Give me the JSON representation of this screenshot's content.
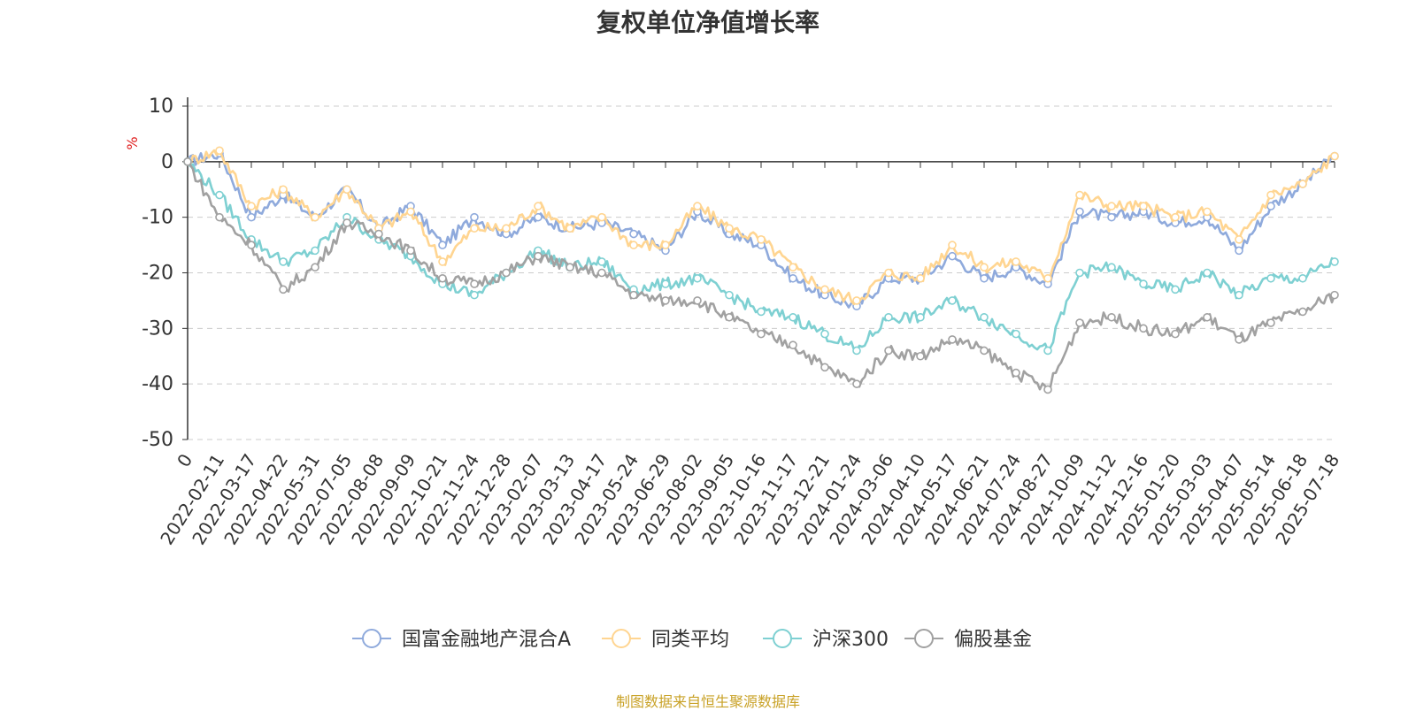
{
  "chart_data": {
    "type": "line",
    "title": "复权单位净值增长率",
    "ylabel": "%",
    "ylim": [
      -50,
      10
    ],
    "yticks": [
      10,
      0,
      -10,
      -20,
      -30,
      -40,
      -50
    ],
    "first_x_label": "0",
    "x_tick_labels": [
      "2022-02-11",
      "2022-03-17",
      "2022-04-22",
      "2022-05-31",
      "2022-07-05",
      "2022-08-08",
      "2022-09-09",
      "2022-10-21",
      "2022-11-24",
      "2022-12-28",
      "2023-02-07",
      "2023-03-13",
      "2023-04-17",
      "2023-05-24",
      "2023-06-29",
      "2023-08-02",
      "2023-09-05",
      "2023-10-16",
      "2023-11-17",
      "2023-12-21",
      "2024-01-24",
      "2024-03-06",
      "2024-04-10",
      "2024-05-17",
      "2024-06-21",
      "2024-07-24",
      "2024-08-27",
      "2024-10-09",
      "2024-11-12",
      "2024-12-16",
      "2025-01-20",
      "2025-03-03",
      "2025-04-07",
      "2025-05-14",
      "2025-06-18",
      "2025-07-18"
    ],
    "x_knots": [
      "0",
      "2022-02-11",
      "2022-03-17",
      "2022-04-22",
      "2022-05-31",
      "2022-07-05",
      "2022-08-08",
      "2022-09-09",
      "2022-10-21",
      "2022-11-24",
      "2022-12-28",
      "2023-02-07",
      "2023-03-13",
      "2023-04-17",
      "2023-05-24",
      "2023-06-29",
      "2023-08-02",
      "2023-09-05",
      "2023-10-16",
      "2023-11-17",
      "2023-12-21",
      "2024-01-24",
      "2024-03-06",
      "2024-04-10",
      "2024-05-17",
      "2024-06-21",
      "2024-07-24",
      "2024-08-27",
      "2024-10-09",
      "2024-11-12",
      "2024-12-16",
      "2025-01-20",
      "2025-03-03",
      "2025-04-07",
      "2025-05-14",
      "2025-06-18",
      "2025-07-18"
    ],
    "grid": true,
    "legend_position": "bottom",
    "series": [
      {
        "name": "国富金融地产混合A",
        "color": "#8faadc",
        "values": [
          0,
          1.5,
          -10,
          -6,
          -10,
          -5,
          -12,
          -8,
          -15,
          -10,
          -13,
          -10,
          -12,
          -11,
          -13,
          -16,
          -9,
          -13,
          -15,
          -21,
          -24,
          -26,
          -21,
          -21,
          -17,
          -21,
          -19,
          -22,
          -9,
          -10,
          -9,
          -11,
          -10,
          -16,
          -8,
          -4,
          1
        ]
      },
      {
        "name": "同类平均",
        "color": "#ffd591",
        "values": [
          0,
          2,
          -8,
          -5,
          -10,
          -5,
          -12,
          -9,
          -18,
          -12,
          -12,
          -8,
          -12,
          -10,
          -15,
          -15,
          -8,
          -12,
          -14,
          -19,
          -23,
          -25,
          -20,
          -21,
          -15,
          -19,
          -18,
          -21,
          -6,
          -8,
          -8,
          -10,
          -9,
          -14,
          -6,
          -4,
          1
        ]
      },
      {
        "name": "沪深300",
        "color": "#7ed0d2",
        "values": [
          0,
          -6,
          -14,
          -18,
          -16,
          -10,
          -14,
          -17,
          -22,
          -24,
          -20,
          -16,
          -19,
          -18,
          -23,
          -22,
          -21,
          -24,
          -27,
          -28,
          -31,
          -34,
          -28,
          -28,
          -25,
          -28,
          -31,
          -34,
          -20,
          -19,
          -22,
          -23,
          -20,
          -24,
          -21,
          -21,
          -18
        ]
      },
      {
        "name": "偏股基金",
        "color": "#a1a1a1",
        "values": [
          0,
          -10,
          -15,
          -23,
          -19,
          -11,
          -13,
          -16,
          -21,
          -22,
          -20,
          -17,
          -19,
          -20,
          -24,
          -25,
          -25,
          -28,
          -31,
          -33,
          -37,
          -40,
          -34,
          -35,
          -32,
          -34,
          -38,
          -41,
          -29,
          -28,
          -30,
          -31,
          -28,
          -32,
          -29,
          -27,
          -24
        ]
      }
    ],
    "source_note": "制图数据来自恒生聚源数据库"
  }
}
